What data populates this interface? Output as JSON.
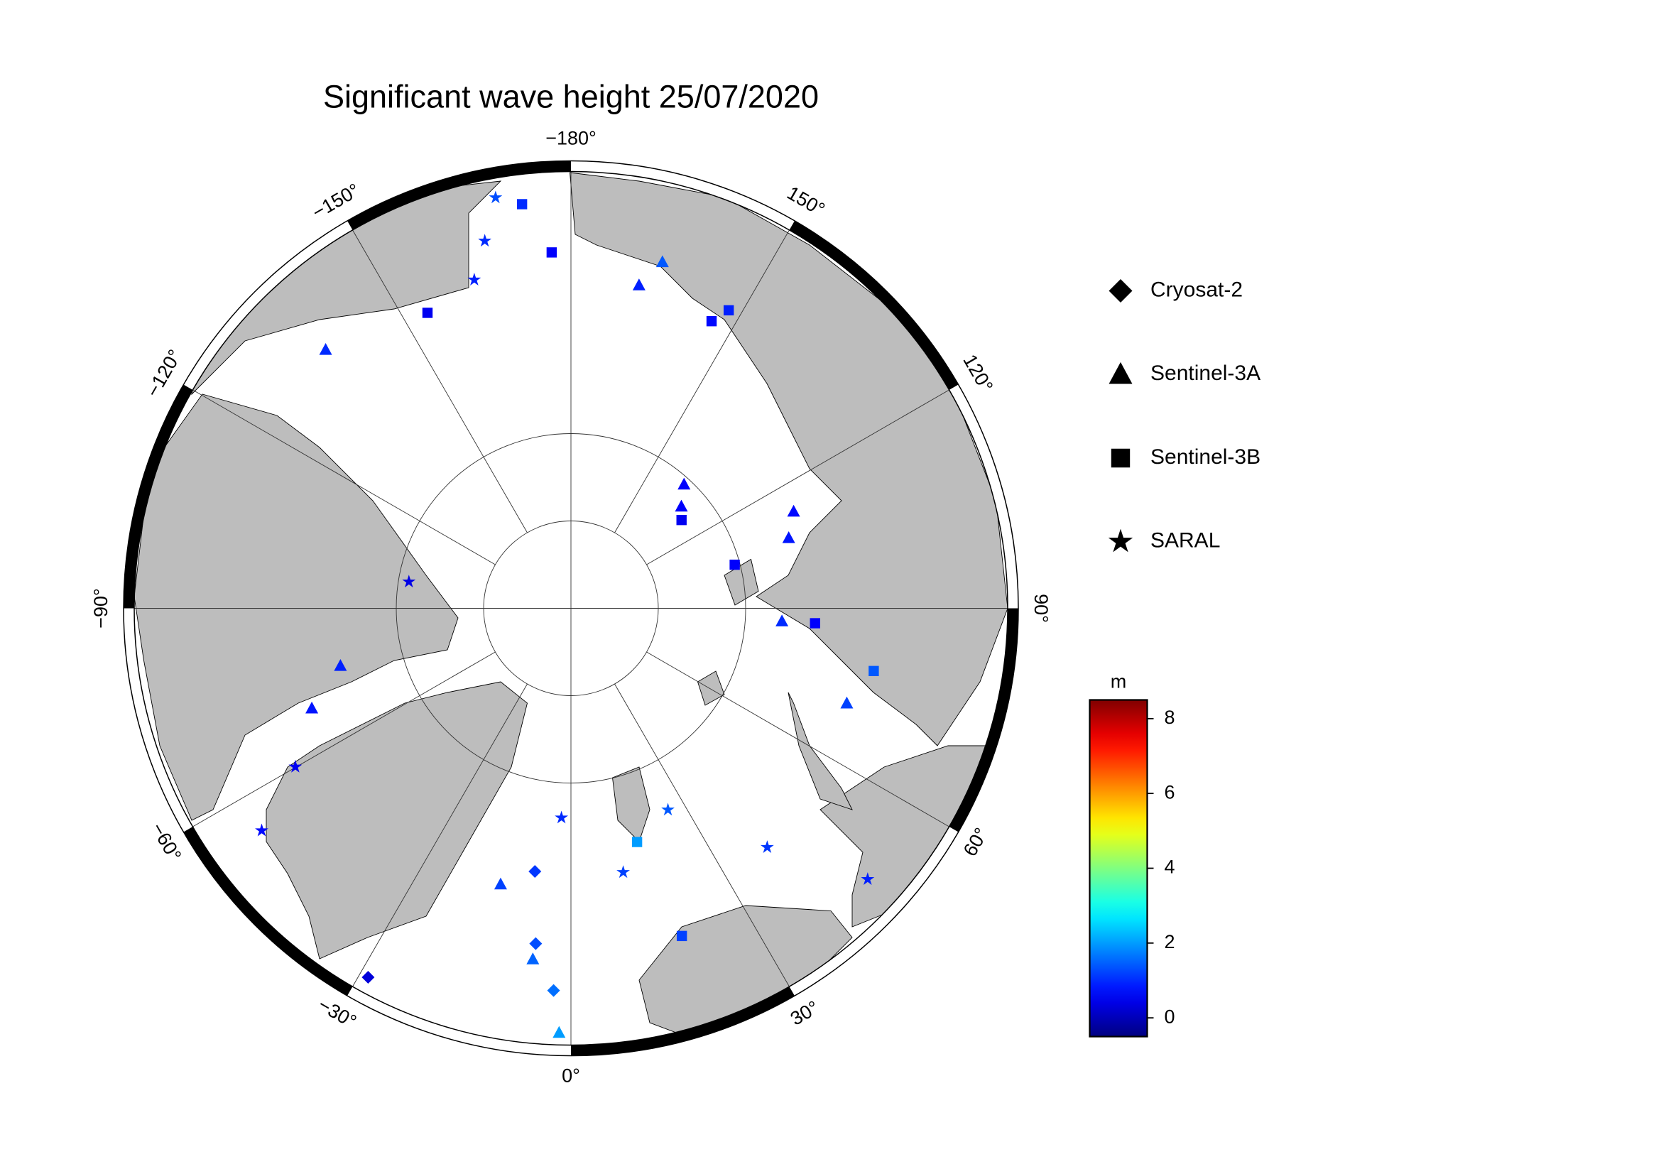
{
  "chart_data": {
    "type": "map",
    "title": "Significant wave height 25/07/2020",
    "projection": "azimuthal-equidistant",
    "lat_lim": [
      65,
      90
    ],
    "lat_circles": [
      80,
      85
    ],
    "lon_ticks": [
      {
        "value": -180,
        "label": "−180°"
      },
      {
        "value": -150,
        "label": "−150°"
      },
      {
        "value": -120,
        "label": "−120°"
      },
      {
        "value": -90,
        "label": "−90°"
      },
      {
        "value": -60,
        "label": "−60°"
      },
      {
        "value": -30,
        "label": "−30°"
      },
      {
        "value": 0,
        "label": "0°"
      },
      {
        "value": 30,
        "label": "30°"
      },
      {
        "value": 60,
        "label": "60°"
      },
      {
        "value": 90,
        "label": "90°"
      },
      {
        "value": 120,
        "label": "120°"
      },
      {
        "value": 150,
        "label": "150°"
      }
    ],
    "series": [
      {
        "name": "Cryosat-2",
        "marker": "diamond",
        "tracks": [
          {
            "lat": [
              74.8,
              70.7,
              68.1
            ],
            "lon": [
              -7.8,
              -6.0,
              -2.6
            ],
            "values": [
              1.1,
              1.3,
              1.6
            ]
          },
          {
            "lat": [
              65.9
            ],
            "lon": [
              -28.8
            ],
            "values": [
              0.3
            ]
          }
        ]
      },
      {
        "name": "Sentinel-3A",
        "marker": "triangle",
        "tracks": [
          {
            "lat": [
              80.4,
              76.1
            ],
            "lon": [
              137.6,
              113.5
            ],
            "values": [
              0.6,
              0.7
            ]
          },
          {
            "lat": [
              81.4,
              76.9
            ],
            "lon": [
              132.7,
              107.9
            ],
            "values": [
              0.6,
              0.8
            ]
          },
          {
            "lat": [
              71.1,
              69.5
            ],
            "lon": [
              168.1,
              165.2
            ],
            "values": [
              0.9,
              1.4
            ]
          },
          {
            "lat": [
              69.6
            ],
            "lon": [
              -136.5
            ],
            "values": [
              1.0
            ]
          },
          {
            "lat": [
              74.1,
              76.4
            ],
            "lon": [
              -68.9,
              -76.0
            ],
            "values": [
              0.8,
              0.9
            ]
          },
          {
            "lat": [
              73.7,
              69.8,
              65.7
            ],
            "lon": [
              -14.3,
              -6.2,
              -1.6
            ],
            "values": [
              1.2,
              1.5,
              2.0
            ]
          },
          {
            "lat": [
              77.9,
              73.3
            ],
            "lon": [
              86.5,
              71.0
            ],
            "values": [
              1.0,
              1.2
            ]
          }
        ]
      },
      {
        "name": "Sentinel-3B",
        "marker": "square",
        "tracks": [
          {
            "lat": [
              81.9,
              80.3
            ],
            "lon": [
              128.6,
              104.9
            ],
            "values": [
              0.5,
              0.6
            ]
          },
          {
            "lat": [
              71.7,
              70.7
            ],
            "lon": [
              153.9,
              152.1
            ],
            "values": [
              0.7,
              0.9
            ]
          },
          {
            "lat": [
              66.7,
              69.6
            ],
            "lon": [
              -173.1,
              -176.9
            ],
            "values": [
              1.0,
              0.6
            ]
          },
          {
            "lat": [
              71.2
            ],
            "lon": [
              -154.1
            ],
            "values": [
              0.5
            ]
          },
          {
            "lat": [
              76.1,
              70.2
            ],
            "lon": [
              15.8,
              18.7
            ],
            "values": [
              2.0,
              1.2
            ]
          },
          {
            "lat": [
              76.0,
              72.3
            ],
            "lon": [
              86.5,
              78.3
            ],
            "values": [
              0.6,
              1.4
            ]
          }
        ]
      },
      {
        "name": "SARAL",
        "marker": "star",
        "tracks": [
          {
            "lat": [
              77.2,
              72.3,
              67.0
            ],
            "lon": [
              25.7,
              39.4,
              47.6
            ],
            "values": [
              1.4,
              1.1,
              0.9
            ]
          },
          {
            "lat": [
              66.1,
              68.4,
              70.4
            ],
            "lon": [
              -169.6,
              -166.8,
              -163.6
            ],
            "values": [
              1.3,
              1.0,
              0.9
            ]
          },
          {
            "lat": [
              68.2,
              71.8
            ],
            "lon": [
              -54.3,
              -60.1
            ],
            "values": [
              0.7,
              0.5
            ]
          },
          {
            "lat": [
              78.0,
              74.6
            ],
            "lon": [
              -2.6,
              11.2
            ],
            "values": [
              1.0,
              1.2
            ]
          },
          {
            "lat": [
              80.6
            ],
            "lon": [
              -99.3
            ],
            "values": [
              0.4
            ]
          }
        ]
      }
    ],
    "colorbar": {
      "label": "m",
      "colormap": "jet",
      "lim": [
        -0.5,
        8.5
      ],
      "ticks": [
        0,
        2,
        4,
        6,
        8
      ]
    }
  }
}
